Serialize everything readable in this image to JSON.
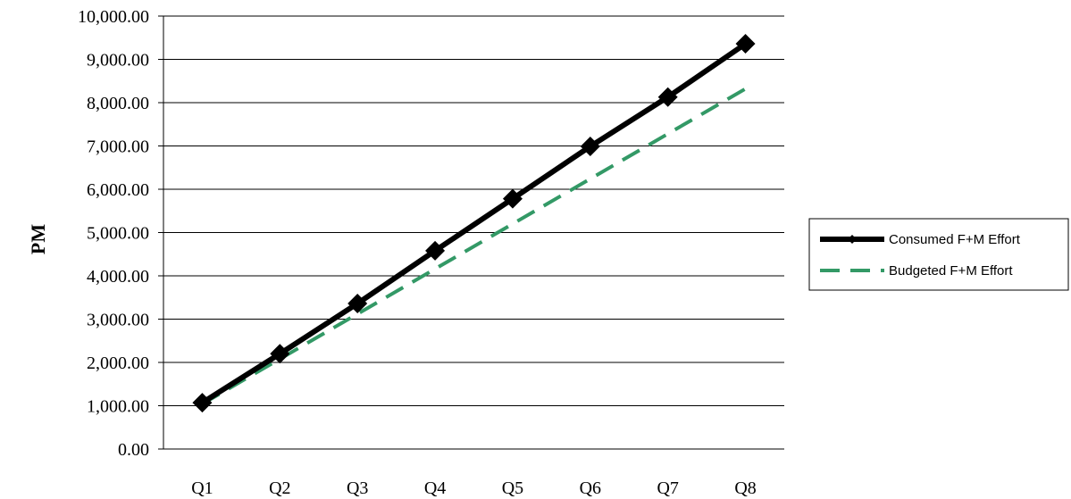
{
  "chart_data": {
    "type": "line",
    "title": "",
    "xlabel": "",
    "ylabel": "PM",
    "categories": [
      "Q1",
      "Q2",
      "Q3",
      "Q4",
      "Q5",
      "Q6",
      "Q7",
      "Q8"
    ],
    "ylim": [
      0,
      10000
    ],
    "yticks": [
      0,
      1000,
      2000,
      3000,
      4000,
      5000,
      6000,
      7000,
      8000,
      9000,
      10000
    ],
    "ytick_labels": [
      "0.00",
      "1,000.00",
      "2,000.00",
      "3,000.00",
      "4,000.00",
      "5,000.00",
      "6,000.00",
      "7,000.00",
      "8,000.00",
      "9,000.00",
      "10,000.00"
    ],
    "grid": "horizontal",
    "legend_position": "right",
    "series": [
      {
        "name": "Consumed F+M Effort",
        "values": [
          1070,
          2200,
          3360,
          4580,
          5780,
          6990,
          8130,
          9360
        ],
        "color": "#000000",
        "style": "solid",
        "marker": "diamond"
      },
      {
        "name": "Budgeted F+M Effort",
        "values": [
          1040,
          2080,
          3120,
          4160,
          5200,
          6240,
          7280,
          8320
        ],
        "color": "#339966",
        "style": "dashed",
        "marker": "none"
      }
    ]
  }
}
